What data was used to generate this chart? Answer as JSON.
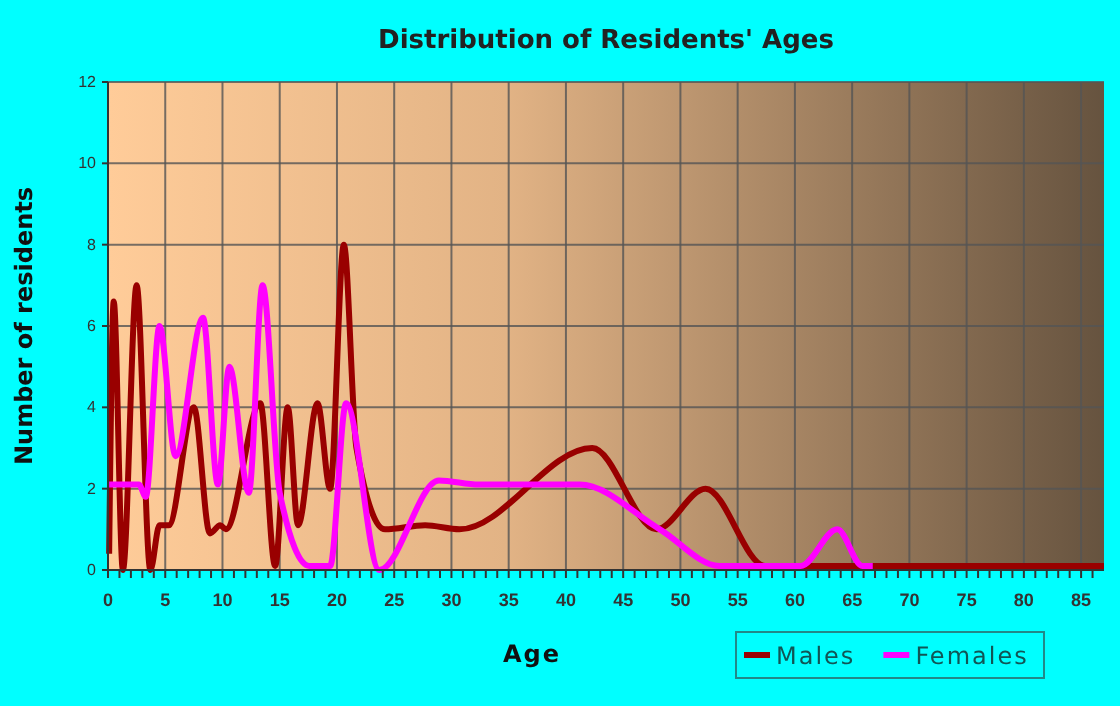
{
  "chart_data": {
    "type": "line",
    "title": "Distribution of Residents' Ages",
    "xlabel": "Age",
    "ylabel": "Number of residents",
    "xlim": [
      0,
      87
    ],
    "ylim": [
      0,
      12
    ],
    "xticks": [
      0,
      {
        "value": 1,
        "label": null
      },
      {
        "value": 2,
        "label": null
      },
      {
        "value": 3,
        "label": null
      },
      {
        "value": 4,
        "label": null
      },
      5,
      {
        "value": 6,
        "label": null
      },
      {
        "value": 7,
        "label": null
      },
      {
        "value": 8,
        "label": null
      },
      {
        "value": 9,
        "label": null
      },
      10,
      {
        "value": 11,
        "label": null
      },
      {
        "value": 12,
        "label": null
      },
      {
        "value": 13,
        "label": null
      },
      {
        "value": 14,
        "label": null
      },
      15,
      {
        "value": 16,
        "label": null
      },
      {
        "value": 17,
        "label": null
      },
      {
        "value": 18,
        "label": null
      },
      {
        "value": 19,
        "label": null
      },
      20,
      {
        "value": 21,
        "label": null
      },
      {
        "value": 22,
        "label": null
      },
      {
        "value": 23,
        "label": null
      },
      {
        "value": 24,
        "label": null
      },
      25,
      {
        "value": 26,
        "label": null
      },
      {
        "value": 27,
        "label": null
      },
      {
        "value": 28,
        "label": null
      },
      {
        "value": 29,
        "label": null
      },
      30,
      {
        "value": 31,
        "label": null
      },
      {
        "value": 32,
        "label": null
      },
      {
        "value": 33,
        "label": null
      },
      {
        "value": 34,
        "label": null
      },
      35,
      {
        "value": 36,
        "label": null
      },
      {
        "value": 37,
        "label": null
      },
      {
        "value": 38,
        "label": null
      },
      {
        "value": 39,
        "label": null
      },
      40,
      {
        "value": 41,
        "label": null
      },
      {
        "value": 42,
        "label": null
      },
      {
        "value": 43,
        "label": null
      },
      {
        "value": 44,
        "label": null
      },
      45,
      {
        "value": 46,
        "label": null
      },
      {
        "value": 47,
        "label": null
      },
      {
        "value": 48,
        "label": null
      },
      {
        "value": 49,
        "label": null
      },
      50,
      {
        "value": 51,
        "label": null
      },
      {
        "value": 52,
        "label": null
      },
      {
        "value": 53,
        "label": null
      },
      {
        "value": 54,
        "label": null
      },
      55,
      {
        "value": 56,
        "label": null
      },
      {
        "value": 57,
        "label": null
      },
      {
        "value": 58,
        "label": null
      },
      {
        "value": 59,
        "label": null
      },
      60,
      {
        "value": 61,
        "label": null
      },
      {
        "value": 62,
        "label": null
      },
      {
        "value": 63,
        "label": null
      },
      {
        "value": 64,
        "label": null
      },
      65,
      {
        "value": 66,
        "label": null
      },
      {
        "value": 67,
        "label": null
      },
      {
        "value": 68,
        "label": null
      },
      {
        "value": 69,
        "label": null
      },
      70,
      {
        "value": 71,
        "label": null
      },
      {
        "value": 72,
        "label": null
      },
      {
        "value": 73,
        "label": null
      },
      {
        "value": 74,
        "label": null
      },
      75,
      {
        "value": 76,
        "label": null
      },
      {
        "value": 77,
        "label": null
      },
      {
        "value": 78,
        "label": null
      },
      {
        "value": 79,
        "label": null
      },
      80,
      {
        "value": 81,
        "label": null
      },
      {
        "value": 82,
        "label": null
      },
      {
        "value": 83,
        "label": null
      },
      {
        "value": 84,
        "label": null
      },
      85,
      {
        "value": 86,
        "label": null
      }
    ],
    "yticks": [
      0,
      2,
      4,
      6,
      8,
      10,
      12
    ],
    "grid": true,
    "legend": "bottom right",
    "marker": "none",
    "line_style": "solid",
    "series": [
      {
        "name": "Males",
        "color": "#990000",
        "x": [
          0.1,
          0.5,
          1.3,
          2.5,
          3.7,
          4.5,
          5.3,
          7.5,
          8.9,
          9.8,
          10.3,
          13.3,
          14.6,
          15.7,
          16.6,
          18.3,
          19.4,
          20.6,
          21.7,
          24.2,
          27.7,
          30.7,
          42.3,
          47.9,
          52.2,
          57.4,
          60,
          70,
          80,
          87
        ],
        "values": [
          0.4,
          6.6,
          0,
          7,
          0,
          1.1,
          1.1,
          4,
          0.9,
          1.1,
          1,
          4.1,
          0.1,
          4,
          1.1,
          4.1,
          2,
          8,
          3,
          1,
          1.1,
          1,
          3,
          1,
          2,
          0.1,
          0.1,
          0.1,
          0.1,
          0.1
        ]
      },
      {
        "name": "Females",
        "color": "#ff00ff",
        "x": [
          0.1,
          2.7,
          3.3,
          4.5,
          5.9,
          8.3,
          9.6,
          10.6,
          12.3,
          13.5,
          15,
          17.6,
          19.4,
          20.8,
          23.7,
          28.9,
          32.4,
          41.2,
          48.2,
          53.4,
          58,
          60.5,
          63.7,
          65.9,
          66.8
        ],
        "values": [
          2.1,
          2.1,
          1.8,
          6,
          2.8,
          6.2,
          2.1,
          5,
          1.9,
          7,
          1.9,
          0.1,
          0.1,
          4.1,
          0,
          2.2,
          2.1,
          2.1,
          1,
          0.1,
          0.1,
          0.1,
          1,
          0.1,
          0.1
        ]
      }
    ]
  }
}
